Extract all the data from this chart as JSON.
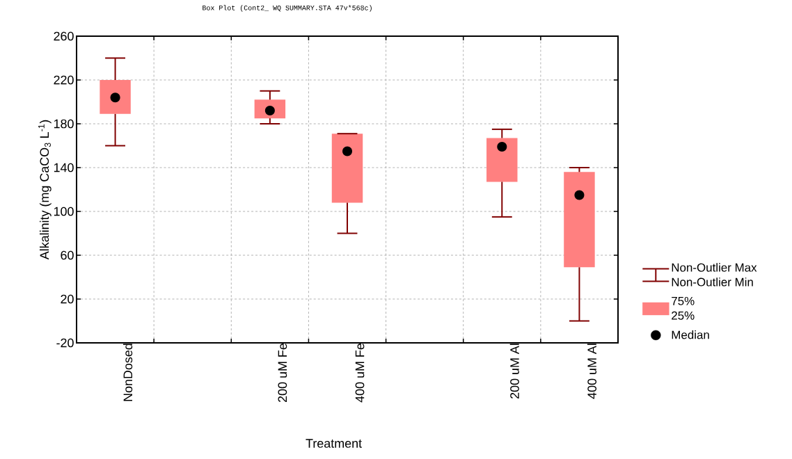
{
  "chart_data": {
    "type": "box",
    "title": "Box Plot (Cont2_ WQ SUMMARY.STA 47v*568c)",
    "xlabel": "Treatment",
    "ylabel": "Alkalinity (mg CaCO$_{3}$ L$^{-1}$)",
    "categories": [
      "NonDosed",
      null,
      "200 uM Fe",
      "400 uM Fe",
      null,
      "200 uM Al",
      "400 uM Al"
    ],
    "boxes": [
      {
        "low": 160,
        "q1": 189,
        "median": 204,
        "q3": 220,
        "high": 240
      },
      null,
      {
        "low": 180,
        "q1": 185,
        "median": 192,
        "q3": 202,
        "high": 210
      },
      {
        "low": 80,
        "q1": 108,
        "median": 155,
        "q3": 171,
        "high": 171
      },
      null,
      {
        "low": 95,
        "q1": 127,
        "median": 159,
        "q3": 167,
        "high": 175
      },
      {
        "low": 0,
        "q1": 49,
        "median": 115,
        "q3": 136,
        "high": 140
      }
    ],
    "color": "#ff8080",
    "ylim": [
      -20,
      260
    ],
    "yticks": [
      -20,
      20,
      60,
      100,
      140,
      180,
      220,
      260
    ],
    "grid": true,
    "annotations": [
      "Non-Outlier Max",
      "Non-Outlier Min",
      "75%",
      "25%",
      "Median"
    ]
  }
}
